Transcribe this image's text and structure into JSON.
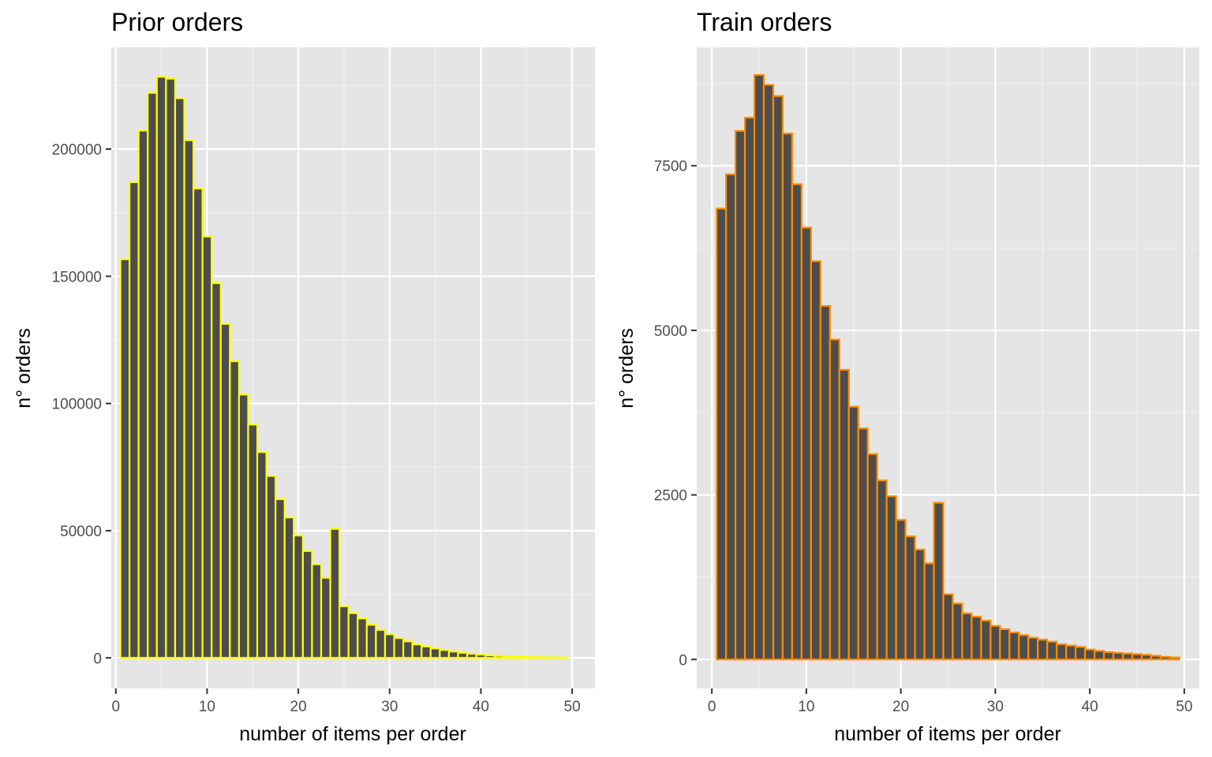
{
  "chart_data": [
    {
      "type": "bar",
      "title": "Prior orders",
      "xlabel": "number of items per order",
      "ylabel": "n° orders",
      "xlim": [
        -0.5,
        52.5
      ],
      "ylim": [
        -12000,
        240000
      ],
      "x_ticks": [
        0,
        10,
        20,
        30,
        40,
        50
      ],
      "x_tick_labels": [
        "0",
        "10",
        "20",
        "30",
        "40",
        "50"
      ],
      "y_ticks": [
        0,
        50000,
        100000,
        150000,
        200000
      ],
      "y_tick_labels": [
        "0",
        "50000",
        "100000",
        "150000",
        "200000"
      ],
      "bar_outline_color": "#ffff00",
      "bar_fill_color": "#4d4d4d",
      "panel_background": "#e5e5e5",
      "grid": true,
      "x": [
        1,
        2,
        3,
        4,
        5,
        6,
        7,
        8,
        9,
        10,
        11,
        12,
        13,
        14,
        15,
        16,
        17,
        18,
        19,
        20,
        21,
        22,
        23,
        24,
        25,
        26,
        27,
        28,
        29,
        30,
        31,
        32,
        33,
        34,
        35,
        36,
        37,
        38,
        39,
        40,
        41,
        42,
        43,
        44,
        45,
        46,
        47,
        48,
        49
      ],
      "values": [
        156700,
        187000,
        207300,
        222100,
        228400,
        227700,
        220000,
        203500,
        184500,
        165600,
        147300,
        131300,
        116600,
        103500,
        91700,
        80900,
        71500,
        62400,
        55200,
        48100,
        42000,
        36800,
        31500,
        50700,
        20300,
        17600,
        15500,
        13000,
        11000,
        9300,
        7800,
        6500,
        5300,
        4500,
        3700,
        3100,
        2500,
        2000,
        1600,
        1300,
        1000,
        800,
        600,
        500,
        400,
        300,
        250,
        200,
        150
      ]
    },
    {
      "type": "bar",
      "title": "Train orders",
      "xlabel": "number of items per order",
      "ylabel": "n° orders",
      "xlim": [
        -1.6,
        51.6
      ],
      "ylim": [
        -440,
        9300
      ],
      "x_ticks": [
        0,
        10,
        20,
        30,
        40,
        50
      ],
      "x_tick_labels": [
        "0",
        "10",
        "20",
        "30",
        "40",
        "50"
      ],
      "y_ticks": [
        0,
        2500,
        5000,
        7500
      ],
      "y_tick_labels": [
        "0",
        "2500",
        "5000",
        "7500"
      ],
      "bar_outline_color": "#ff8c00",
      "bar_fill_color": "#4d4d4d",
      "panel_background": "#e5e5e5",
      "grid": true,
      "x": [
        1,
        2,
        3,
        4,
        5,
        6,
        7,
        8,
        9,
        10,
        11,
        12,
        13,
        14,
        15,
        16,
        17,
        18,
        19,
        20,
        21,
        22,
        23,
        24,
        25,
        26,
        27,
        28,
        29,
        30,
        31,
        32,
        33,
        34,
        35,
        36,
        37,
        38,
        39,
        40,
        41,
        42,
        43,
        44,
        45,
        46,
        47,
        48,
        49
      ],
      "values": [
        6850,
        7370,
        8030,
        8230,
        8880,
        8730,
        8560,
        7990,
        7220,
        6560,
        6050,
        5370,
        4860,
        4400,
        3840,
        3510,
        3120,
        2720,
        2480,
        2120,
        1870,
        1670,
        1460,
        2380,
        990,
        850,
        700,
        650,
        590,
        510,
        460,
        410,
        370,
        330,
        300,
        270,
        230,
        210,
        190,
        150,
        130,
        110,
        100,
        90,
        80,
        70,
        55,
        40,
        30
      ]
    }
  ]
}
